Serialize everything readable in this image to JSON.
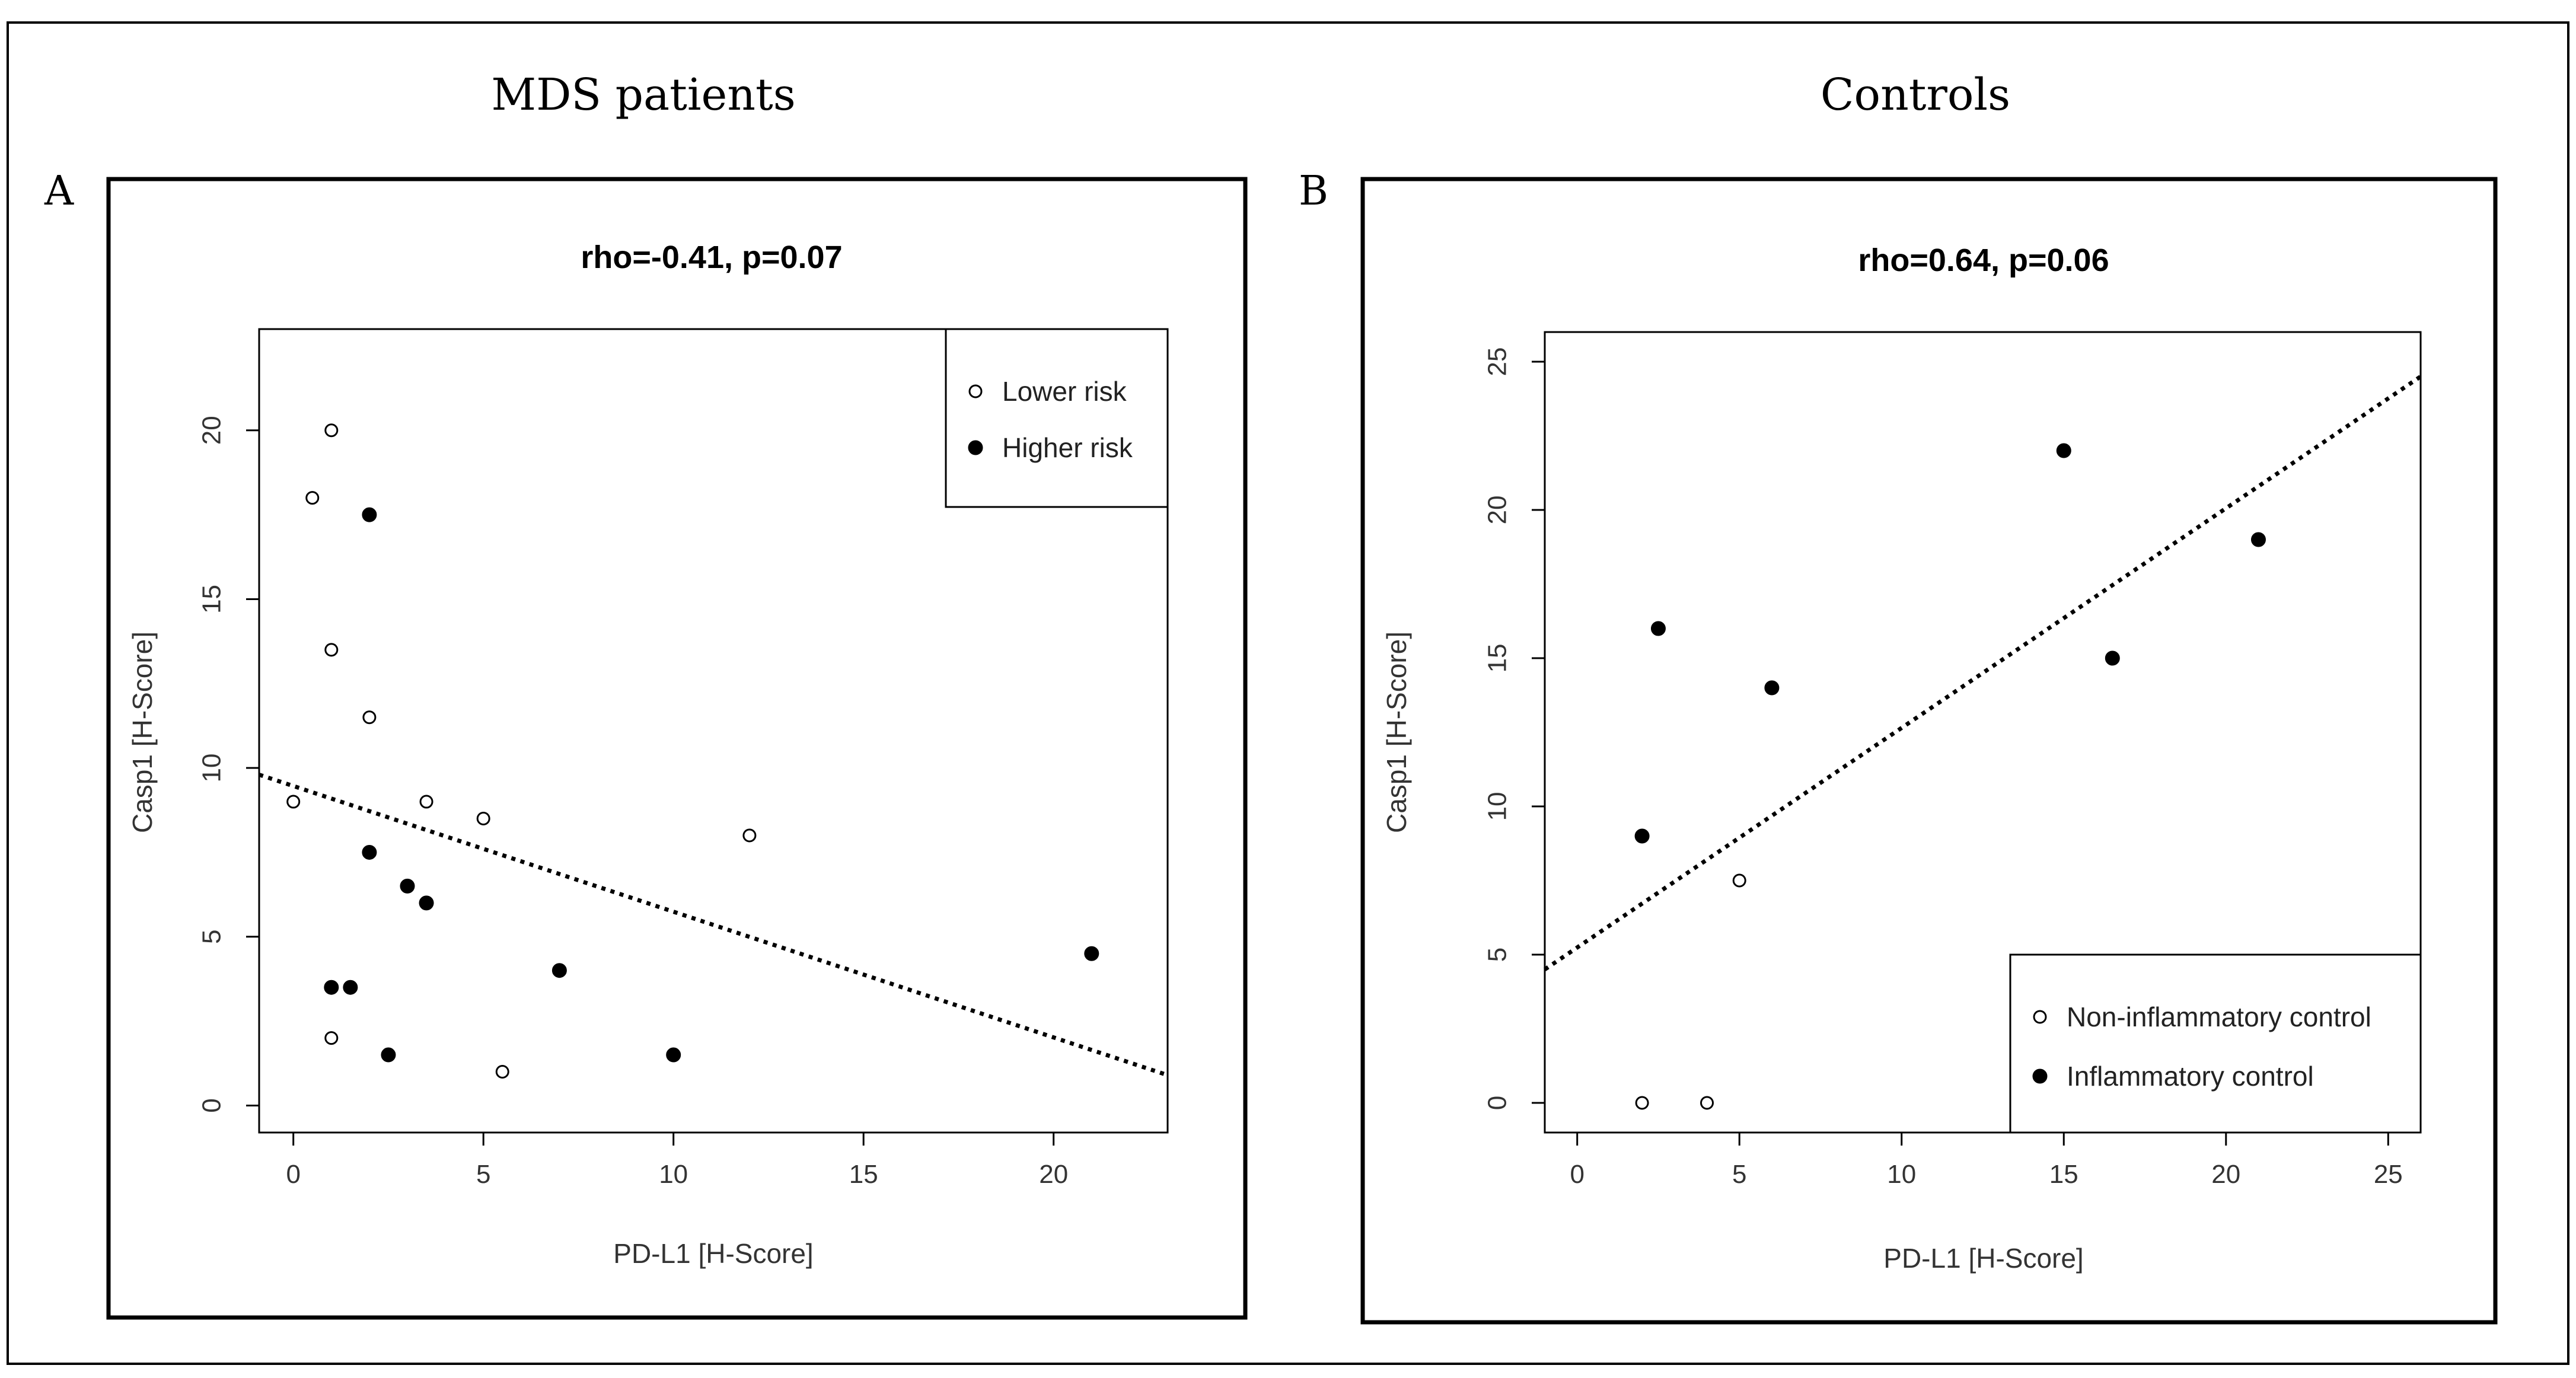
{
  "figure": {
    "left_heading": "MDS patients",
    "right_heading": "Controls"
  },
  "chart_data": [
    {
      "type": "scatter",
      "panel": "A",
      "title": "rho=-0.41, p=0.07",
      "xlabel": "PD-L1 [H-Score]",
      "ylabel": "Casp1 [H-Score]",
      "xlim": [
        -0.9,
        23
      ],
      "ylim": [
        -0.8,
        23
      ],
      "xticks": [
        0,
        5,
        10,
        15,
        20
      ],
      "yticks": [
        0,
        5,
        10,
        15,
        20
      ],
      "legend_position": "top-right",
      "series": [
        {
          "name": "Lower risk",
          "marker": "open-circle",
          "points": [
            [
              0,
              9
            ],
            [
              0.5,
              18
            ],
            [
              1,
              20
            ],
            [
              1,
              13.5
            ],
            [
              1,
              2
            ],
            [
              2,
              11.5
            ],
            [
              3.5,
              9
            ],
            [
              5,
              8.5
            ],
            [
              5.5,
              1
            ],
            [
              12,
              8
            ]
          ]
        },
        {
          "name": "Higher risk",
          "marker": "filled-circle",
          "points": [
            [
              1,
              3.5
            ],
            [
              1.5,
              3.5
            ],
            [
              2,
              17.5
            ],
            [
              2,
              7.5
            ],
            [
              2.5,
              1.5
            ],
            [
              3,
              6.5
            ],
            [
              3.5,
              6
            ],
            [
              7,
              4
            ],
            [
              10,
              1.5
            ],
            [
              21,
              4.5
            ]
          ]
        }
      ],
      "trendline": {
        "style": "dotted",
        "from": [
          -0.9,
          9.8
        ],
        "to": [
          23,
          0.9
        ]
      }
    },
    {
      "type": "scatter",
      "panel": "B",
      "title": "rho=0.64, p=0.06",
      "xlabel": "PD-L1 [H-Score]",
      "ylabel": "Casp1 [H-Score]",
      "xlim": [
        -1,
        26
      ],
      "ylim": [
        -1,
        26
      ],
      "xticks": [
        0,
        5,
        10,
        15,
        20,
        25
      ],
      "yticks": [
        0,
        5,
        10,
        15,
        20,
        25
      ],
      "legend_position": "bottom-right",
      "series": [
        {
          "name": "Non-inflammatory control",
          "marker": "open-circle",
          "points": [
            [
              2,
              0
            ],
            [
              4,
              0
            ],
            [
              5,
              7.5
            ]
          ]
        },
        {
          "name": "Inflammatory control",
          "marker": "filled-circle",
          "points": [
            [
              2,
              9
            ],
            [
              2.5,
              16
            ],
            [
              6,
              14
            ],
            [
              15,
              22
            ],
            [
              16.5,
              15
            ],
            [
              21,
              19
            ]
          ]
        }
      ],
      "trendline": {
        "style": "dotted",
        "from": [
          -1,
          4.5
        ],
        "to": [
          26,
          24.5
        ]
      }
    }
  ]
}
